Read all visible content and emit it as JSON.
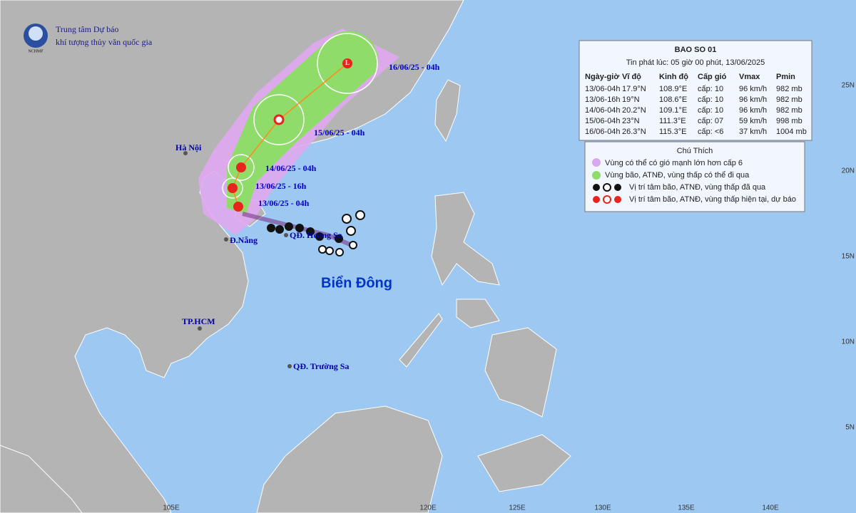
{
  "header": {
    "agency_line1": "Trung tâm Dự báo",
    "agency_line2": "khí tượng thủy văn quốc gia",
    "logo_text": "NCHMF"
  },
  "bulletin": {
    "title": "BAO SO 01",
    "issued": "Tin phát lúc: 05 giờ 00 phút, 13/06/2025",
    "columns": [
      "Ngày-giờ",
      "Vĩ độ",
      "Kinh độ",
      "Cấp gió",
      "Vmax",
      "Pmin"
    ],
    "rows": [
      [
        "13/06-04h",
        "17.9°N",
        "108.9°E",
        "cấp: 10",
        "96 km/h",
        "982 mb"
      ],
      [
        "13/06-16h",
        "19°N",
        "108.6°E",
        "cấp: 10",
        "96 km/h",
        "982 mb"
      ],
      [
        "14/06-04h",
        "20.2°N",
        "109.1°E",
        "cấp: 10",
        "96 km/h",
        "982 mb"
      ],
      [
        "15/06-04h",
        "23°N",
        "111.3°E",
        "cấp: 07",
        "59 km/h",
        "998 mb"
      ],
      [
        "16/06-04h",
        "26.3°N",
        "115.3°E",
        "cấp: <6",
        "37 km/h",
        "1004 mb"
      ]
    ]
  },
  "legend": {
    "title": "Chú Thích",
    "items": [
      "Vùng có thể có gió mạnh lớn hơn cấp 6",
      "Vùng bão, ATNĐ, vùng thấp có thể đi qua",
      "Vị trí tâm bão, ATNĐ, vùng thấp đã qua",
      "Vị trí tâm bão, ATNĐ, vùng thấp hiện tại, dự báo"
    ]
  },
  "map_labels": {
    "hanoi": "Hà Nội",
    "danang": "Đ.Nẵng",
    "hoangsa": "QĐ. Hoàng Sa",
    "sea": "Biển Đông",
    "hcm": "TP.HCM",
    "truongsa": "QĐ. Trường Sa"
  },
  "track_labels": [
    "16/06/25 - 04h",
    "15/06/25 - 04h",
    "14/06/25 - 04h",
    "13/06/25 - 16h",
    "13/06/25 - 04h"
  ],
  "lon_labels": [
    "105E",
    "120E",
    "125E",
    "130E",
    "135E",
    "140E"
  ],
  "lat_labels": [
    "25N",
    "20N",
    "15N",
    "10N",
    "5N"
  ]
}
